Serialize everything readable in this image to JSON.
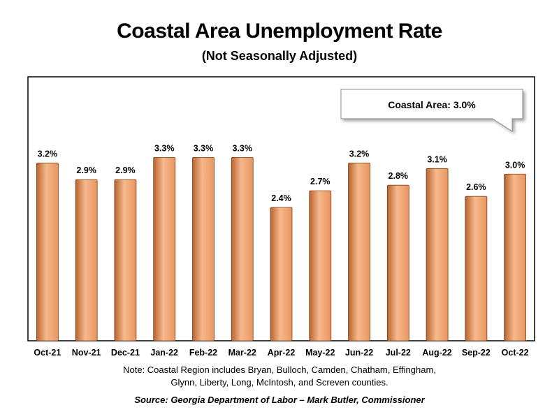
{
  "chart_data": {
    "type": "bar",
    "title": "Coastal Area Unemployment Rate",
    "subtitle": "(Not Seasonally Adjusted)",
    "categories": [
      "Oct-21",
      "Nov-21",
      "Dec-21",
      "Jan-22",
      "Feb-22",
      "Mar-22",
      "Apr-22",
      "May-22",
      "Jun-22",
      "Jul-22",
      "Aug-22",
      "Sep-22",
      "Oct-22"
    ],
    "values": [
      3.2,
      2.9,
      2.9,
      3.3,
      3.3,
      3.3,
      2.4,
      2.7,
      3.2,
      2.8,
      3.1,
      2.6,
      3.0
    ],
    "data_labels": [
      "3.2%",
      "2.9%",
      "2.9%",
      "3.3%",
      "3.3%",
      "3.3%",
      "2.4%",
      "2.7%",
      "3.2%",
      "2.8%",
      "3.1%",
      "2.6%",
      "3.0%"
    ],
    "ylim": [
      0,
      4.75
    ],
    "xlabel": "",
    "ylabel": "",
    "grid": false,
    "callout": "Coastal Area: 3.0%",
    "colors": {
      "bar_light": "#F6B98C",
      "bar_mid": "#E8955F",
      "bar_dark": "#B8642F",
      "bar_edge": "#7A3E1A",
      "plot_border": "#000000",
      "callout_border": "#8C8C8C"
    }
  },
  "footer": {
    "note_line1": "Note: Coastal Region includes Bryan, Bulloch, Camden, Chatham, Effingham,",
    "note_line2": "Glynn, Liberty, Long, McIntosh, and Screven counties.",
    "source": "Source:  Georgia Department of Labor – Mark Butler, Commissioner"
  }
}
